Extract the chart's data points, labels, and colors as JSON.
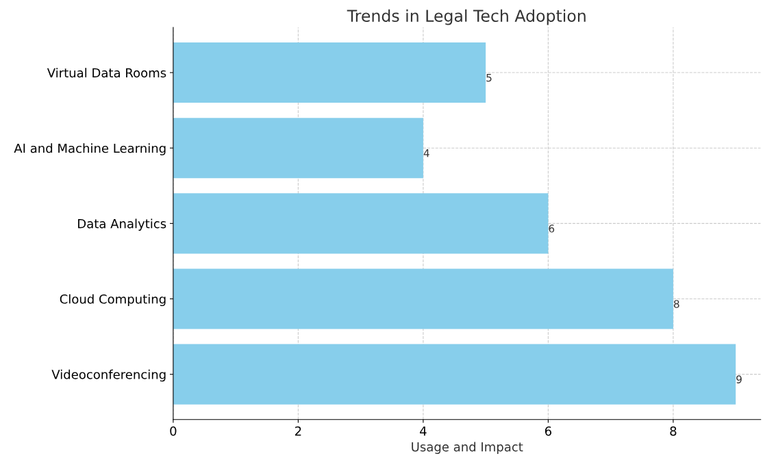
{
  "chart_data": {
    "type": "bar",
    "orientation": "horizontal",
    "title": "Trends in Legal Tech Adoption",
    "xlabel": "Usage and Impact",
    "categories": [
      "Virtual Data Rooms",
      "AI and Machine Learning",
      "Data Analytics",
      "Cloud Computing",
      "Videoconferencing"
    ],
    "values": [
      5,
      4,
      6,
      8,
      9
    ],
    "color": "#87ceeb",
    "data_labels": true,
    "xlim": [
      0,
      9.4
    ],
    "xticks": [
      0,
      2,
      4,
      6,
      8
    ],
    "grid": true
  }
}
